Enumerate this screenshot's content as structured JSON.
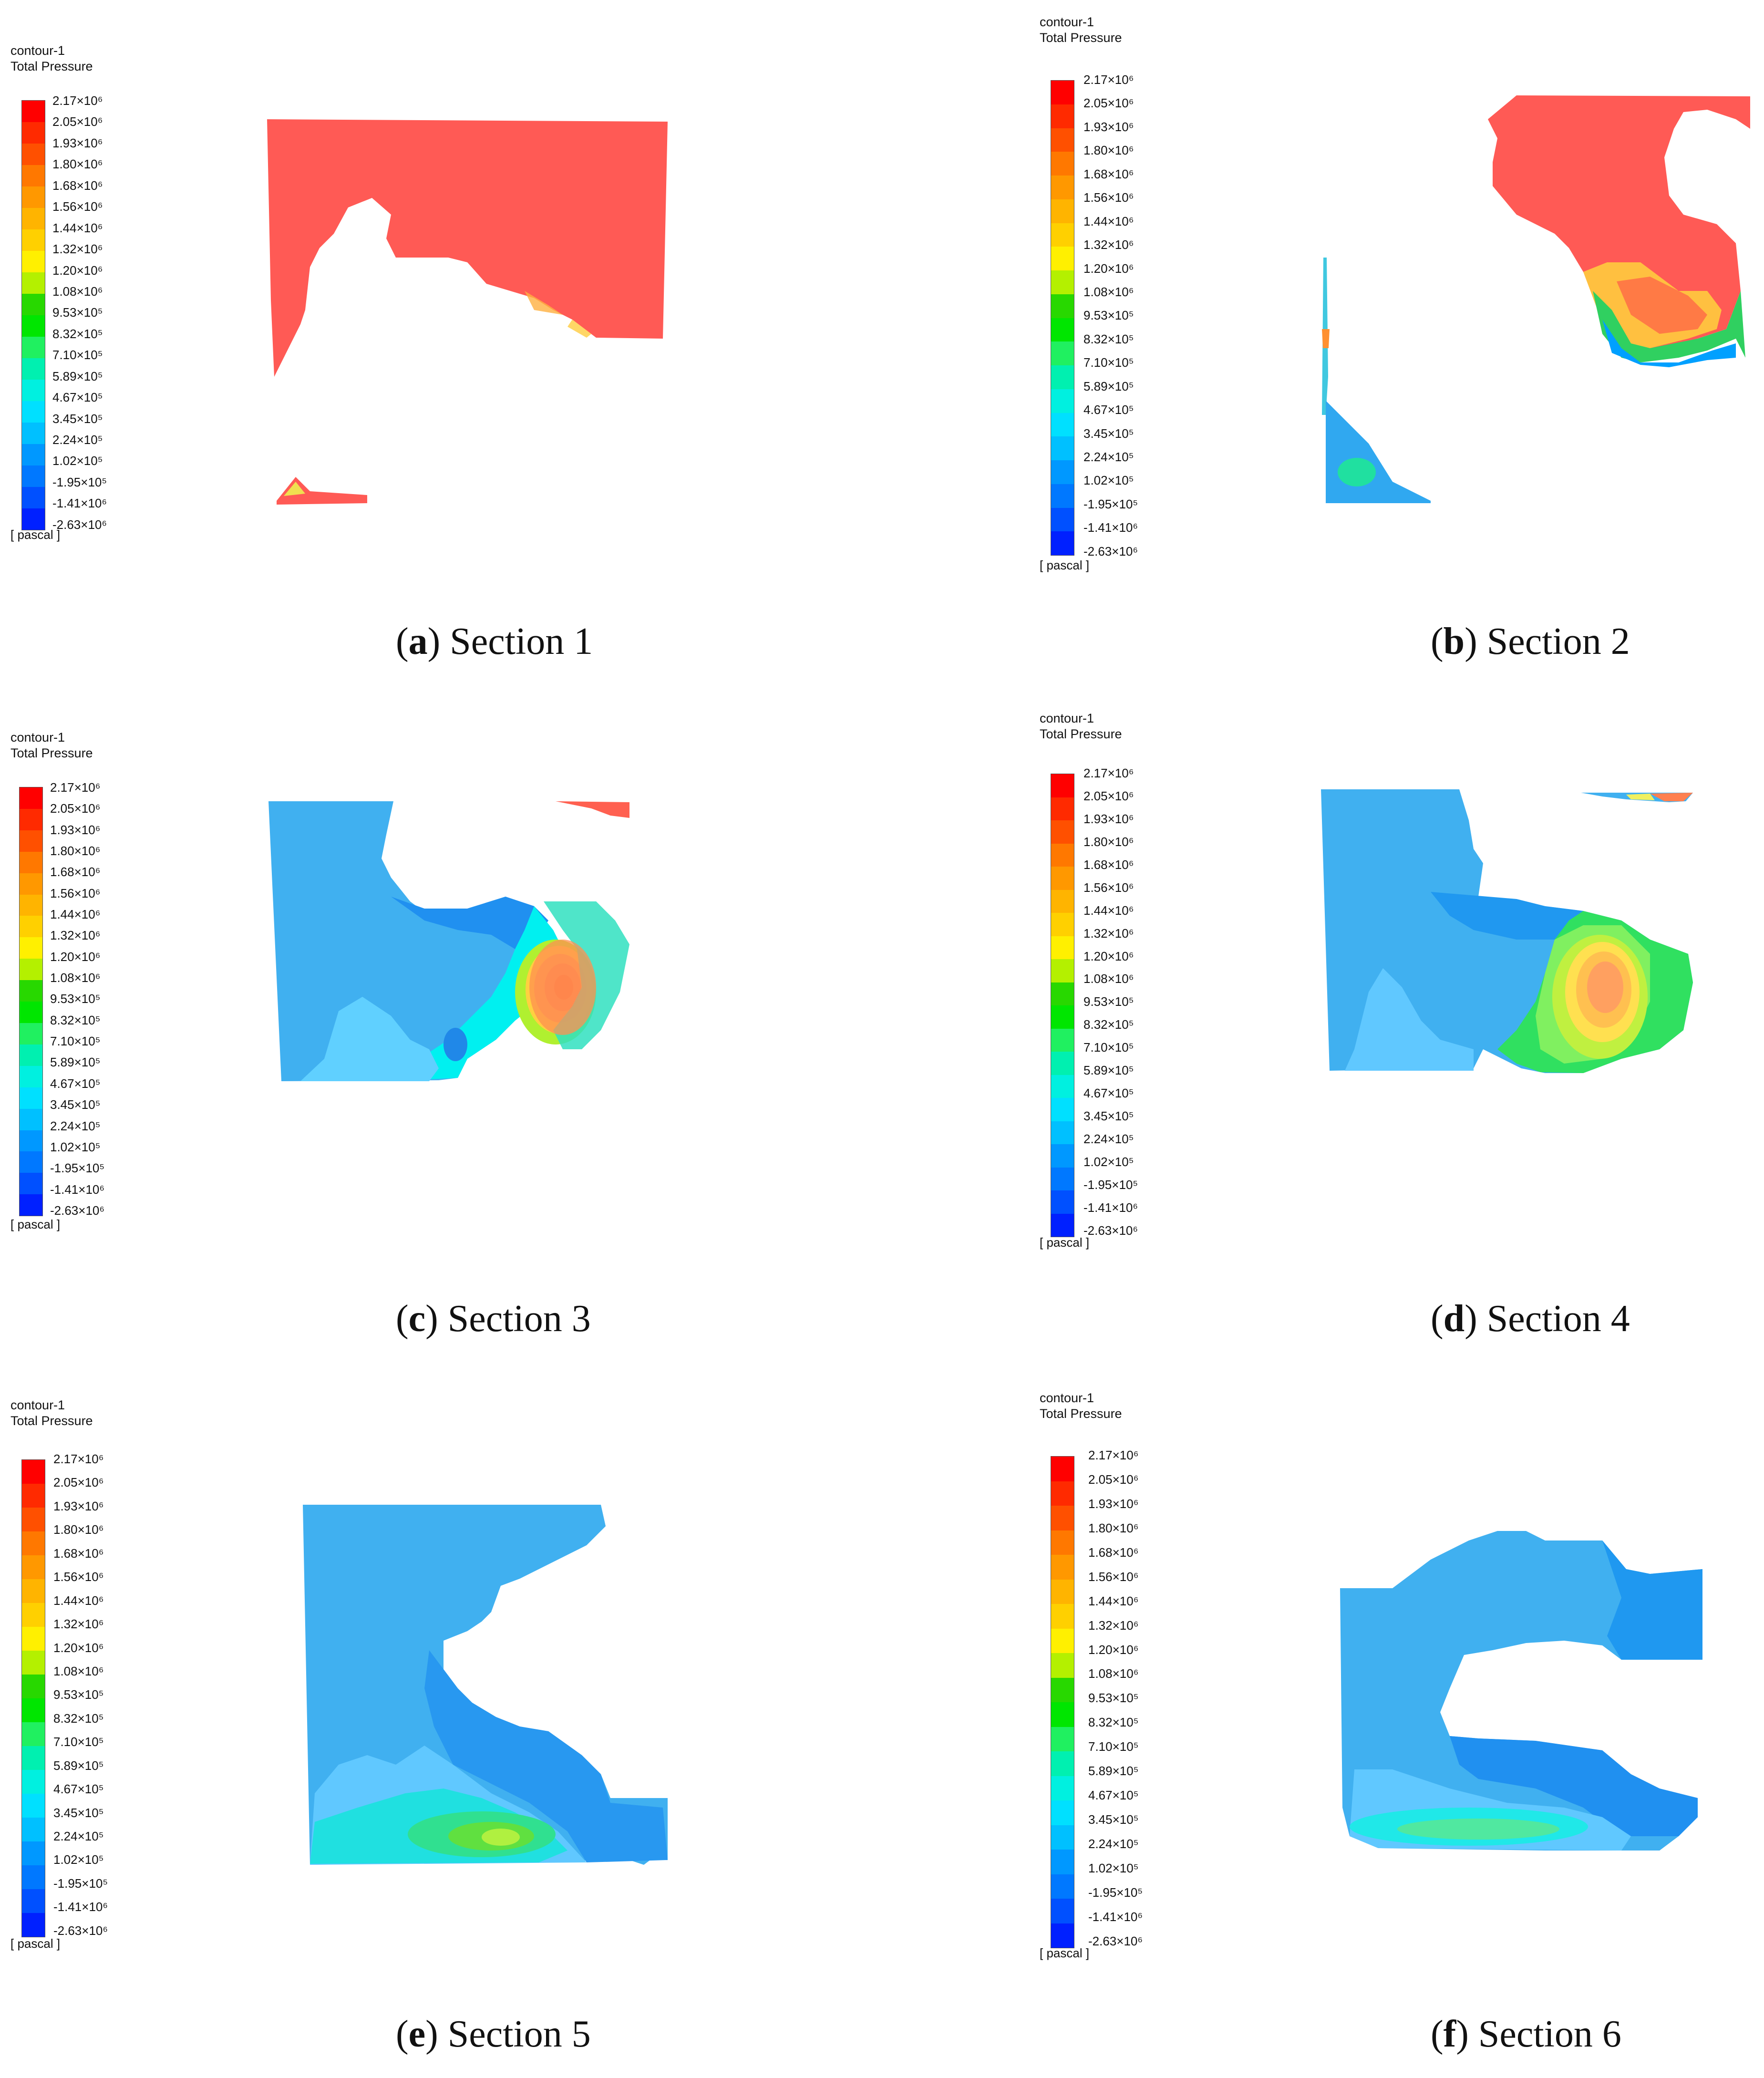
{
  "colorbar": {
    "title_line1": "contour-1",
    "title_line2": "Total Pressure",
    "unit": "[ pascal ]",
    "ticks": [
      "2.17×10⁶",
      "2.05×10⁶",
      "1.93×10⁶",
      "1.80×10⁶",
      "1.68×10⁶",
      "1.56×10⁶",
      "1.44×10⁶",
      "1.32×10⁶",
      "1.20×10⁶",
      "1.08×10⁶",
      "9.53×10⁵",
      "8.32×10⁵",
      "7.10×10⁵",
      "5.89×10⁵",
      "4.67×10⁵",
      "3.45×10⁵",
      "2.24×10⁵",
      "1.02×10⁵",
      "-1.95×10⁵",
      "-1.41×10⁶",
      "-2.63×10⁶"
    ],
    "colors": [
      "#ff0000",
      "#ff2a00",
      "#ff5000",
      "#ff7800",
      "#ff9800",
      "#ffb400",
      "#ffd000",
      "#fff000",
      "#b4f000",
      "#28d800",
      "#00e600",
      "#20f060",
      "#00f0b0",
      "#00f0e0",
      "#00e0ff",
      "#00c0ff",
      "#0098ff",
      "#0078ff",
      "#0050ff",
      "#0020ff"
    ]
  },
  "panels": [
    {
      "letter": "a",
      "label": "Section 1"
    },
    {
      "letter": "b",
      "label": "Section 2"
    },
    {
      "letter": "c",
      "label": "Section 3"
    },
    {
      "letter": "d",
      "label": "Section 4"
    },
    {
      "letter": "e",
      "label": "Section 5"
    },
    {
      "letter": "f",
      "label": "Section 6"
    }
  ]
}
